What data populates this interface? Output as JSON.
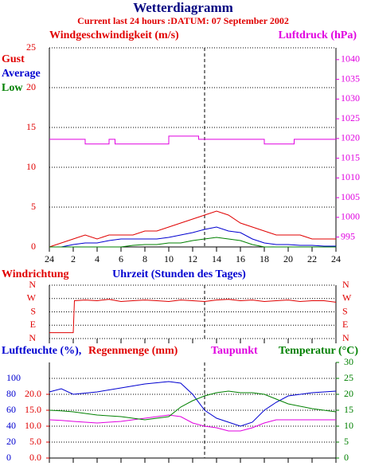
{
  "chart_data": [
    {
      "type": "line",
      "title": "Wetterdiagramm",
      "subtitle": "Current last 24 hours :DATUM: 07 September 2002",
      "y_label": "Windgeschwindigkeit (m/s)",
      "y2_label": "Luftdruck (hPa)",
      "current_hour": 13,
      "legend": "upper left",
      "x": [
        0,
        1,
        2,
        3,
        4,
        5,
        6,
        7,
        8,
        9,
        10,
        11,
        12,
        13,
        14,
        15,
        16,
        17,
        18,
        19,
        20,
        21,
        22,
        23,
        24
      ],
      "xlim": [
        0,
        24
      ],
      "xticks": [
        {
          "value": 0,
          "label": "24"
        },
        2,
        4,
        6,
        8,
        10,
        12,
        14,
        16,
        18,
        20,
        22,
        24
      ],
      "ylim": [
        0,
        25
      ],
      "yticks": [
        0,
        5,
        10,
        15,
        20,
        25
      ],
      "y2lim": [
        992.5,
        1043
      ],
      "y2ticks": [
        995,
        1000,
        1005,
        1010,
        1015,
        1020,
        1025,
        1030,
        1035,
        1040
      ],
      "series": [
        {
          "name": "Gust",
          "color": "#e00000",
          "values": [
            0,
            0.5,
            1,
            1.5,
            1,
            1.5,
            1.5,
            1.5,
            2,
            2,
            2.5,
            3,
            3.5,
            4,
            4.5,
            4,
            3,
            2.5,
            2,
            1.5,
            1.5,
            1.5,
            1,
            1,
            1
          ]
        },
        {
          "name": "Average",
          "color": "#0000d0",
          "values": [
            0,
            0,
            0.3,
            0.5,
            0.5,
            0.8,
            1,
            1,
            1,
            1,
            1.2,
            1.5,
            1.8,
            2.2,
            2.5,
            2,
            1.8,
            1,
            0.5,
            0.3,
            0.3,
            0.2,
            0.2,
            0.1,
            0.1
          ]
        },
        {
          "name": "Low",
          "color": "#008000",
          "values": [
            0,
            0,
            0,
            0,
            0,
            0,
            0,
            0.2,
            0.3,
            0.3,
            0.5,
            0.5,
            0.8,
            1,
            1.2,
            1,
            0.8,
            0.3,
            0,
            0,
            0,
            0,
            0,
            0,
            0
          ]
        },
        {
          "color": "#e000e0",
          "axis": "y2",
          "x": [
            0,
            3,
            3,
            5,
            5,
            5.5,
            5.5,
            10,
            10,
            12.5,
            12.5,
            18,
            18,
            20.5,
            20.5,
            24
          ],
          "values": [
            1019.8,
            1019.8,
            1018.6,
            1018.6,
            1019.8,
            1019.8,
            1018.6,
            1018.6,
            1020.6,
            1020.6,
            1019.8,
            1019.8,
            1018.6,
            1018.6,
            1019.8,
            1019.8
          ]
        }
      ]
    },
    {
      "type": "line",
      "title": "Windrichtung",
      "x_label": "Uhrzeit (Stunden des Tages)",
      "x": [
        0,
        1,
        2,
        2.1,
        3,
        4,
        5,
        6,
        7,
        8,
        9,
        10,
        11,
        12,
        13,
        14,
        15,
        16,
        17,
        18,
        19,
        20,
        21,
        22,
        23,
        24
      ],
      "xlim": [
        0,
        24
      ],
      "ylim": [
        0,
        360
      ],
      "yticks": [
        {
          "value": 0,
          "label": "N"
        },
        {
          "value": 90,
          "label": "E"
        },
        {
          "value": 180,
          "label": "S"
        },
        {
          "value": 270,
          "label": "W"
        },
        {
          "value": 360,
          "label": "N"
        }
      ],
      "series": [
        {
          "color": "#e00000",
          "values": [
            40,
            40,
            40,
            255,
            260,
            255,
            265,
            250,
            255,
            260,
            255,
            250,
            260,
            255,
            250,
            260,
            265,
            255,
            260,
            250,
            255,
            260,
            250,
            255,
            255,
            245
          ]
        }
      ]
    },
    {
      "type": "line",
      "rain_label": "Regenmenge (mm)",
      "x": [
        0,
        1,
        2,
        4,
        6,
        8,
        10,
        11,
        12,
        13,
        14,
        15,
        16,
        17,
        18,
        19,
        20,
        22,
        24
      ],
      "xlim": [
        0,
        24
      ],
      "ylim": [
        0,
        120
      ],
      "yticks": [
        0,
        20,
        40,
        60,
        80,
        100
      ],
      "rain_lim": [
        0,
        30
      ],
      "rain_ticks": [
        {
          "value": 0,
          "label": "0.0"
        },
        {
          "value": 5,
          "label": "5.0"
        },
        {
          "value": 10,
          "label": "10.0"
        },
        {
          "value": 15,
          "label": "15.0"
        },
        {
          "value": 20,
          "label": "20.0"
        }
      ],
      "y2lim": [
        0,
        30
      ],
      "y2ticks": [
        0,
        5,
        10,
        15,
        20,
        25,
        30
      ],
      "series": [
        {
          "name": "Luftfeuchte (%),",
          "color": "#0000d0",
          "values": [
            83,
            87,
            80,
            83,
            88,
            93,
            96,
            94,
            80,
            60,
            50,
            45,
            40,
            45,
            60,
            70,
            78,
            82,
            84
          ]
        },
        {
          "name": "Taupunkt",
          "color": "#e000e0",
          "axis": "y2",
          "values": [
            12,
            11.8,
            11.5,
            11,
            11.5,
            12.5,
            13.5,
            13,
            11,
            10,
            9.5,
            8.5,
            8.5,
            9.5,
            11,
            12,
            12,
            12,
            12
          ]
        },
        {
          "name": "Temperatur (°C)",
          "color": "#008000",
          "axis": "y2",
          "values": [
            15,
            14.8,
            14.5,
            13.5,
            13,
            12,
            13,
            16,
            18,
            19.5,
            20.5,
            21,
            20.5,
            20.5,
            20,
            18.5,
            17,
            15.5,
            14.5
          ]
        }
      ]
    }
  ]
}
